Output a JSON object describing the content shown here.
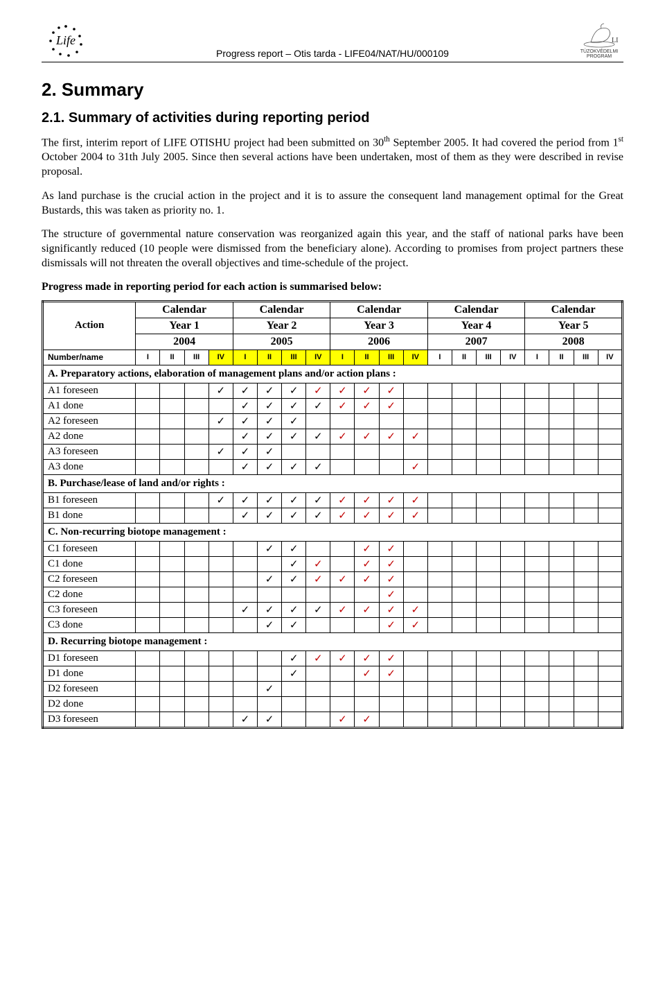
{
  "header": {
    "left_logo_alt": "LIFE stars logo",
    "center": "Progress report – Otis tarda - LIFE04/NAT/HU/000109",
    "right_logo_alt": "Bird logo",
    "right_logo_caption": "TÚZOKVÉDELMI PROGRAM"
  },
  "section_title": "2. Summary",
  "subsection_title": "2.1. Summary of activities during reporting period",
  "para1_a": "The first, interim report of LIFE OTISHU project had been submitted on 30",
  "para1_sup": "th",
  "para1_b": " September 2005. It had covered the period from 1",
  "para1_sup2": "st",
  "para1_c": " October 2004 to 31th July 2005. Since then several actions have been undertaken, most of them as they were described in revise proposal.",
  "para2": "As land purchase is the crucial action in the project and it is to assure the consequent land management optimal for the Great Bustards, this was taken as priority no. 1.",
  "para3": "The structure of governmental nature conservation was reorganized again this year, and the staff of national parks have been significantly reduced (10 people were dismissed from the beneficiary alone). According to promises from project partners these dismissals will not threaten the overall objectives and time-schedule of the project.",
  "lead": "Progress made in reporting period for each action is summarised below:",
  "table": {
    "action_label": "Action",
    "calendar_label": "Calendar",
    "year_labels": [
      "Year 1",
      "Year 2",
      "Year 3",
      "Year 4",
      "Year 5"
    ],
    "year_nums": [
      "2004",
      "2005",
      "2006",
      "2007",
      "2008"
    ],
    "numname_label": "Number/name",
    "quarter_labels": [
      "I",
      "II",
      "III",
      "IV"
    ],
    "highlight_cols": [
      3,
      4,
      5,
      6,
      7,
      8,
      9,
      10,
      11
    ],
    "tick": "✓",
    "sections": [
      {
        "title": "A. Preparatory actions, elaboration of management plans and/or action plans :",
        "rows": [
          {
            "label": "A1 foreseen",
            "cells": [
              "",
              "",
              "",
              "b",
              "b",
              "b",
              "b",
              "r",
              "r",
              "r",
              "r",
              "",
              "",
              "",
              "",
              "",
              "",
              "",
              "",
              ""
            ]
          },
          {
            "label": "A1 done",
            "cells": [
              "",
              "",
              "",
              "",
              "b",
              "b",
              "b",
              "b",
              "r",
              "r",
              "r",
              "",
              "",
              "",
              "",
              "",
              "",
              "",
              "",
              ""
            ]
          },
          {
            "label": "A2 foreseen",
            "cells": [
              "",
              "",
              "",
              "b",
              "b",
              "b",
              "b",
              "",
              "",
              "",
              "",
              "",
              "",
              "",
              "",
              "",
              "",
              "",
              "",
              ""
            ]
          },
          {
            "label": "A2 done",
            "cells": [
              "",
              "",
              "",
              "",
              "b",
              "b",
              "b",
              "b",
              "r",
              "r",
              "r",
              "r",
              "",
              "",
              "",
              "",
              "",
              "",
              "",
              ""
            ]
          },
          {
            "label": "A3 foreseen",
            "cells": [
              "",
              "",
              "",
              "b",
              "b",
              "b",
              "",
              "",
              "",
              "",
              "",
              "",
              "",
              "",
              "",
              "",
              "",
              "",
              "",
              ""
            ]
          },
          {
            "label": "A3 done",
            "cells": [
              "",
              "",
              "",
              "",
              "b",
              "b",
              "b",
              "b",
              "",
              "",
              "",
              "r",
              "",
              "",
              "",
              "",
              "",
              "",
              "",
              ""
            ]
          }
        ]
      },
      {
        "title": "B. Purchase/lease of land and/or rights :",
        "rows": [
          {
            "label": "B1 foreseen",
            "cells": [
              "",
              "",
              "",
              "b",
              "b",
              "b",
              "b",
              "b",
              "r",
              "r",
              "r",
              "r",
              "",
              "",
              "",
              "",
              "",
              "",
              "",
              ""
            ]
          },
          {
            "label": "B1 done",
            "cells": [
              "",
              "",
              "",
              "",
              "b",
              "b",
              "b",
              "b",
              "r",
              "r",
              "r",
              "r",
              "",
              "",
              "",
              "",
              "",
              "",
              "",
              ""
            ]
          }
        ]
      },
      {
        "title": "C. Non-recurring biotope management :",
        "rows": [
          {
            "label": "C1 foreseen",
            "cells": [
              "",
              "",
              "",
              "",
              "",
              "b",
              "b",
              "",
              "",
              "r",
              "r",
              "",
              "",
              "",
              "",
              "",
              "",
              "",
              "",
              ""
            ]
          },
          {
            "label": "C1 done",
            "cells": [
              "",
              "",
              "",
              "",
              "",
              "",
              "b",
              "r",
              "",
              "r",
              "r",
              "",
              "",
              "",
              "",
              "",
              "",
              "",
              "",
              ""
            ]
          },
          {
            "label": "C2 foreseen",
            "cells": [
              "",
              "",
              "",
              "",
              "",
              "b",
              "b",
              "r",
              "r",
              "r",
              "r",
              "",
              "",
              "",
              "",
              "",
              "",
              "",
              "",
              ""
            ]
          },
          {
            "label": "C2 done",
            "cells": [
              "",
              "",
              "",
              "",
              "",
              "",
              "",
              "",
              "",
              "",
              "r",
              "",
              "",
              "",
              "",
              "",
              "",
              "",
              "",
              ""
            ]
          },
          {
            "label": "C3 foreseen",
            "cells": [
              "",
              "",
              "",
              "",
              "b",
              "b",
              "b",
              "b",
              "r",
              "r",
              "r",
              "r",
              "",
              "",
              "",
              "",
              "",
              "",
              "",
              ""
            ]
          },
          {
            "label": "C3 done",
            "cells": [
              "",
              "",
              "",
              "",
              "",
              "b",
              "b",
              "",
              "",
              "",
              "r",
              "r",
              "",
              "",
              "",
              "",
              "",
              "",
              "",
              ""
            ]
          }
        ]
      },
      {
        "title": "D. Recurring biotope management :",
        "rows": [
          {
            "label": "D1 foreseen",
            "cells": [
              "",
              "",
              "",
              "",
              "",
              "",
              "b",
              "r",
              "r",
              "r",
              "r",
              "",
              "",
              "",
              "",
              "",
              "",
              "",
              "",
              ""
            ]
          },
          {
            "label": "D1 done",
            "cells": [
              "",
              "",
              "",
              "",
              "",
              "",
              "b",
              "",
              "",
              "r",
              "r",
              "",
              "",
              "",
              "",
              "",
              "",
              "",
              "",
              ""
            ]
          },
          {
            "label": "D2 foreseen",
            "cells": [
              "",
              "",
              "",
              "",
              "",
              "b",
              "",
              "",
              "",
              "",
              "",
              "",
              "",
              "",
              "",
              "",
              "",
              "",
              "",
              ""
            ]
          },
          {
            "label": "D2 done",
            "cells": [
              "",
              "",
              "",
              "",
              "",
              "",
              "",
              "",
              "",
              "",
              "",
              "",
              "",
              "",
              "",
              "",
              "",
              "",
              "",
              ""
            ]
          },
          {
            "label": "D3 foreseen",
            "cells": [
              "",
              "",
              "",
              "",
              "b",
              "b",
              "",
              "",
              "r",
              "r",
              "",
              "",
              "",
              "",
              "",
              "",
              "",
              "",
              "",
              ""
            ]
          }
        ]
      }
    ]
  }
}
